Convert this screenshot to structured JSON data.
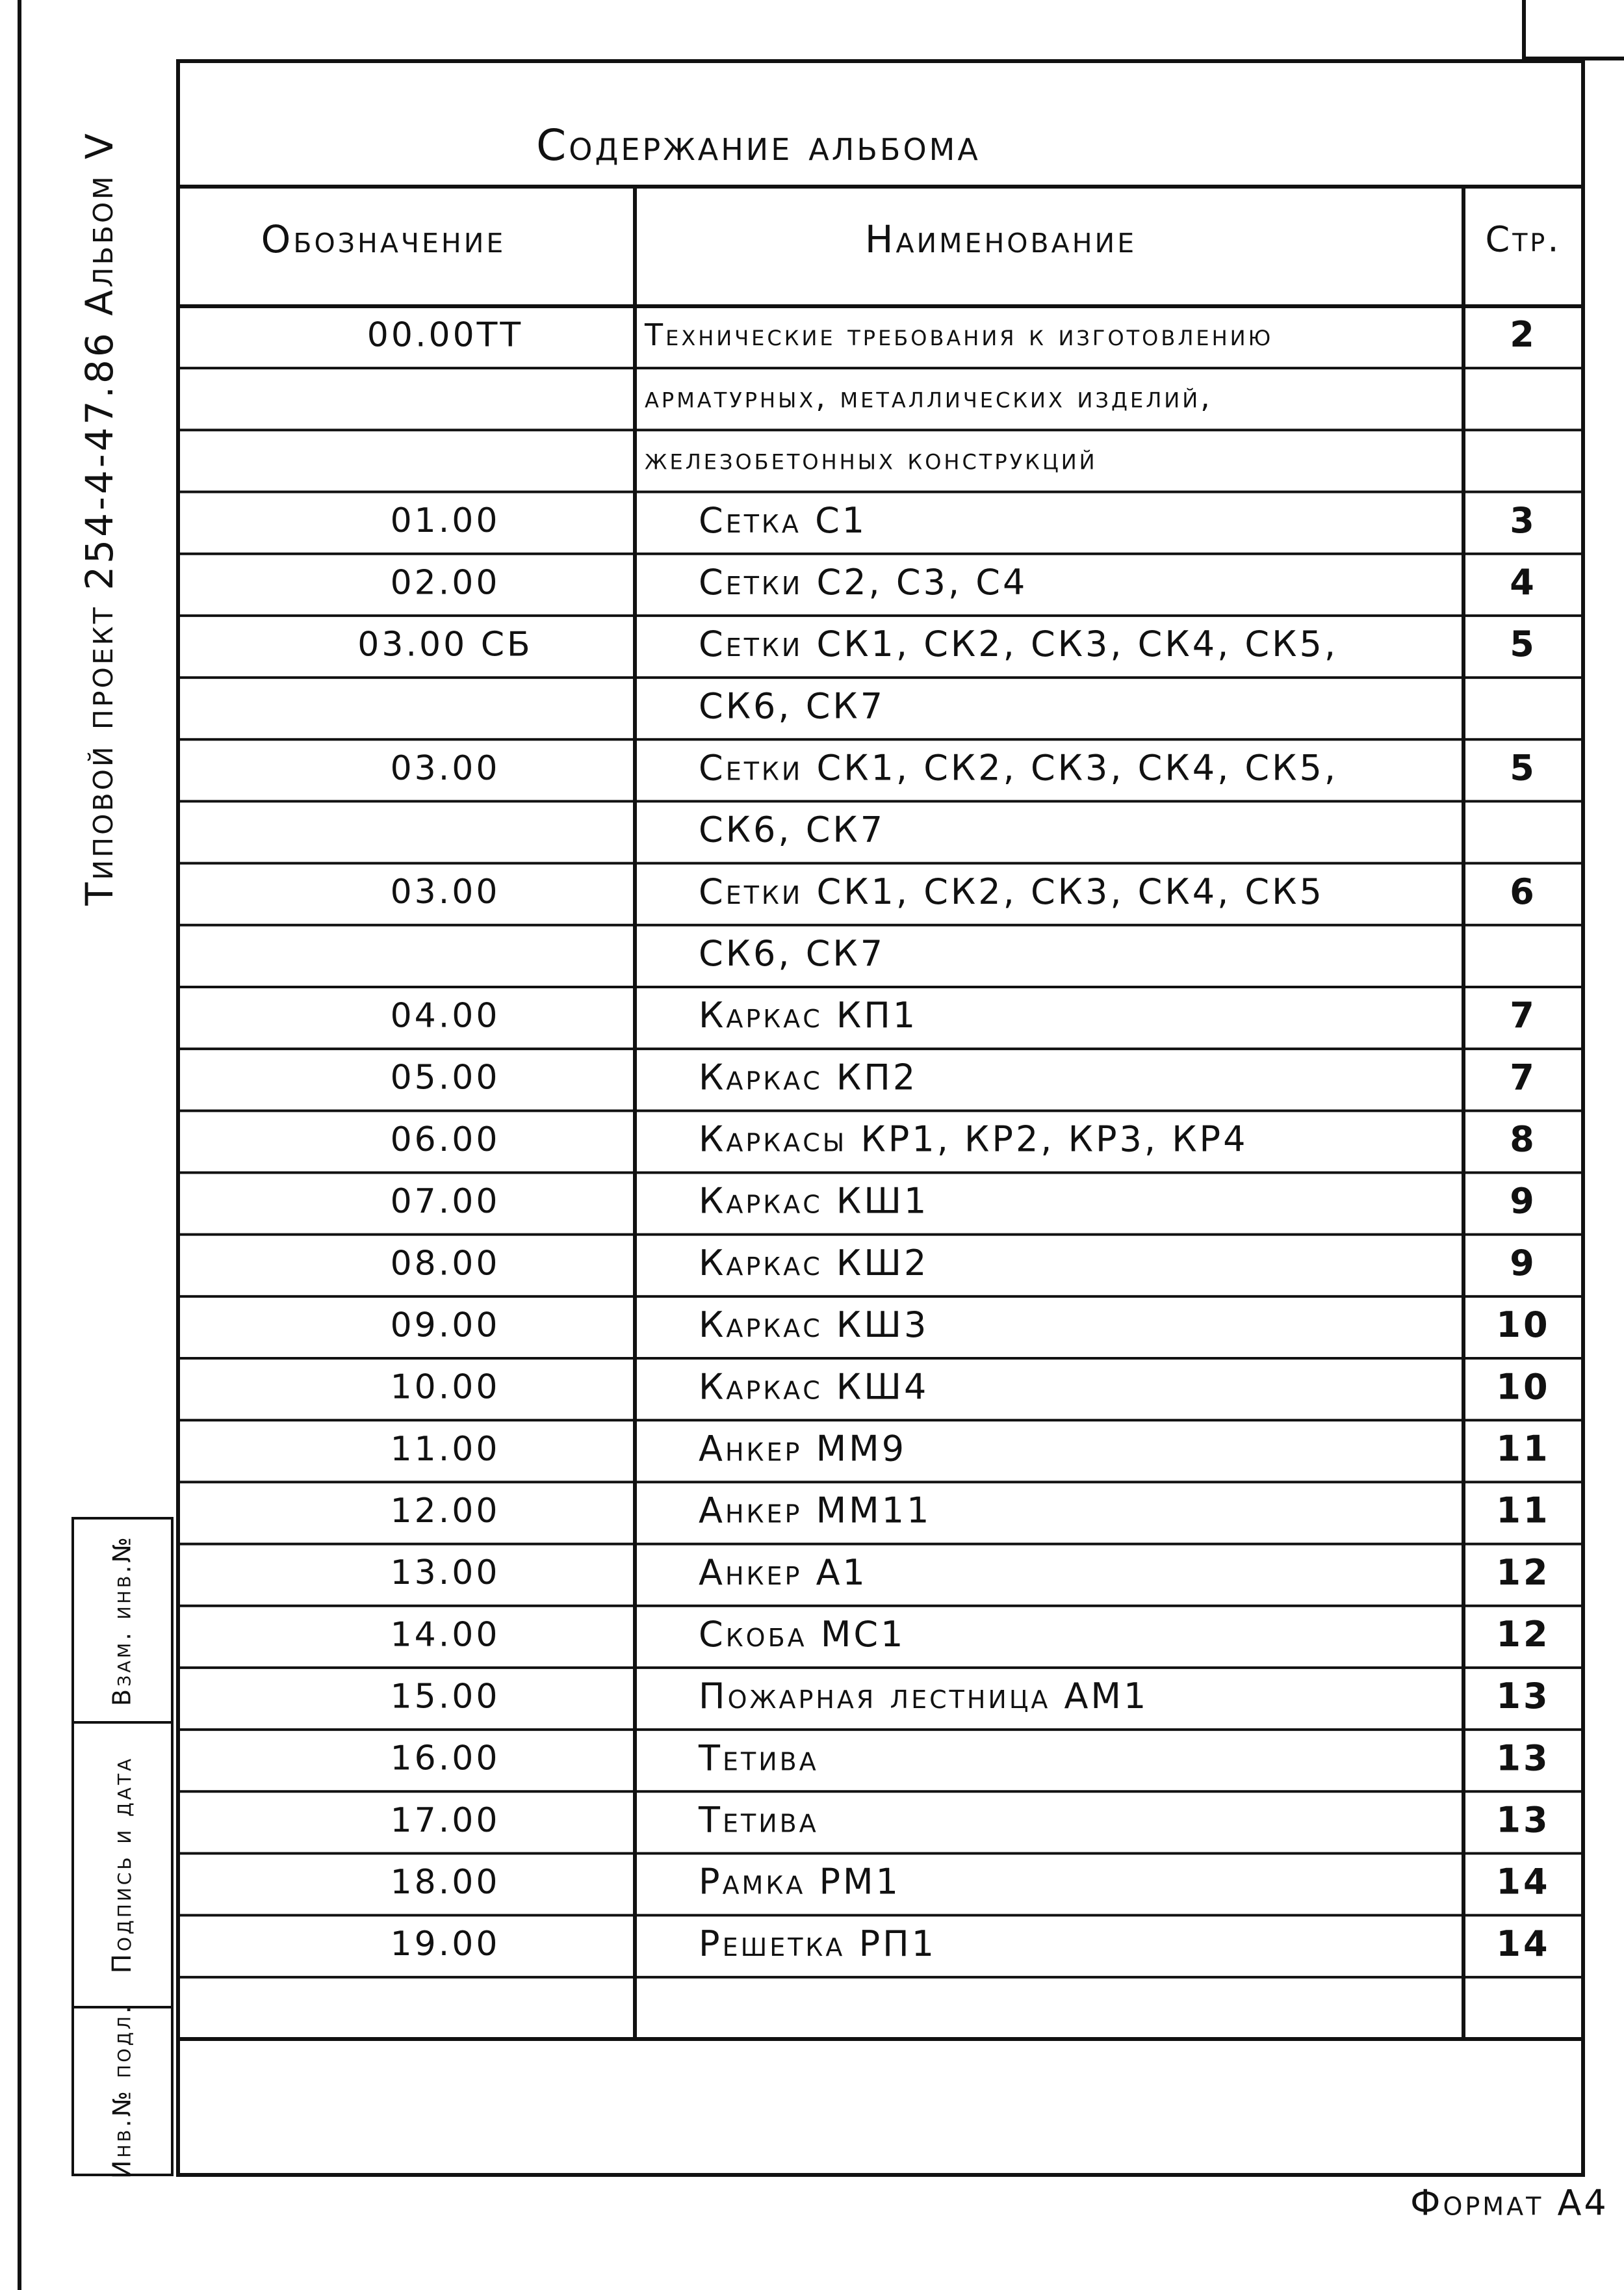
{
  "header": {
    "title": "Содержание альбома",
    "project": "Типовой проект 254-4-47.86 Альбом V"
  },
  "table": {
    "columns": [
      "Обозначение",
      "Наименование",
      "Стр."
    ],
    "rows": [
      {
        "code": "00.00ТТ",
        "name": "Технические требования к изготовлению",
        "page": 2
      },
      {
        "name": "арматурных, металлических изделий,"
      },
      {
        "name": "железобетонных конструкций"
      },
      {
        "code": "01.00",
        "name": "Сетка С1",
        "page": 3
      },
      {
        "code": "02.00",
        "name": "Сетки С2, С3, С4",
        "page": 4
      },
      {
        "code": "03.00 СБ",
        "name": "Сетки СК1, СК2, СК3, СК4, СК5,",
        "page": 5
      },
      {
        "name": "СК6, СК7"
      },
      {
        "code": "03.00",
        "name": "Сетки СК1, СК2, СК3, СК4, СК5,",
        "page": 5
      },
      {
        "name": "СК6, СК7"
      },
      {
        "code": "03.00",
        "name": "Сетки СК1, СК2, СК3, СК4, СК5",
        "page": 6
      },
      {
        "name": "СК6, СК7"
      },
      {
        "code": "04.00",
        "name": "Каркас КП1",
        "page": 7
      },
      {
        "code": "05.00",
        "name": "Каркас КП2",
        "page": 7
      },
      {
        "code": "06.00",
        "name": "Каркасы КР1, КР2, КР3, КР4",
        "page": 8
      },
      {
        "code": "07.00",
        "name": "Каркас КШ1",
        "page": 9
      },
      {
        "code": "08.00",
        "name": "Каркас КШ2",
        "page": 9
      },
      {
        "code": "09.00",
        "name": "Каркас КШ3",
        "page": 10
      },
      {
        "code": "10.00",
        "name": "Каркас КШ4",
        "page": 10
      },
      {
        "code": "11.00",
        "name": "Анкер ММ9",
        "page": 11
      },
      {
        "code": "12.00",
        "name": "Анкер ММ11",
        "page": 11
      },
      {
        "code": "13.00",
        "name": "Анкер А1",
        "page": 12
      },
      {
        "code": "14.00",
        "name": "Скоба МС1",
        "page": 12
      },
      {
        "code": "15.00",
        "name": "Пожарная лестница АМ1",
        "page": 13
      },
      {
        "code": "16.00",
        "name": "Тетива",
        "page": 13
      },
      {
        "code": "17.00",
        "name": "Тетива",
        "page": 13
      },
      {
        "code": "18.00",
        "name": "Рамка РМ1",
        "page": 14
      },
      {
        "code": "19.00",
        "name": "Решетка РП1",
        "page": 14
      }
    ]
  },
  "stamp": {
    "original_inventory": "Инв.№ подл.",
    "signature_date": "Подпись и дата",
    "replaced_inventory": "Взам. инв.№"
  },
  "footer": {
    "format": "Формат А4"
  }
}
